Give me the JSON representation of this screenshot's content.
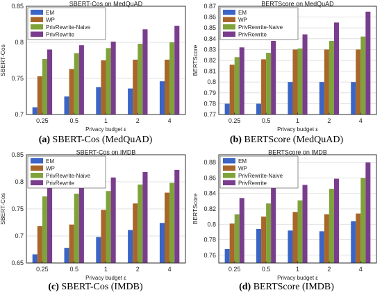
{
  "colors": {
    "EM": "#3a64c6",
    "WP": "#a8662a",
    "PrivRewrite-Naive": "#7fa33a",
    "PrivRewrite": "#7a3d8e"
  },
  "chart_data": [
    {
      "type": "bar",
      "title": "SBERT-Cos on MedQuAD",
      "caption_tag": "(a)",
      "caption_text": " SBERT-Cos (MedQuAD)",
      "xlabel": "Privacy budget ε",
      "ylabel": "SBERT-Cos",
      "ylim": [
        0.7,
        0.85
      ],
      "yticks": [
        0.7,
        0.75,
        0.8,
        0.85
      ],
      "ytick_labels": [
        "0.7",
        "0.75",
        "0.8",
        "0.85"
      ],
      "categories": [
        "0.25",
        "0.5",
        "1",
        "2",
        "4"
      ],
      "legend_position": "top-left",
      "grid": true,
      "series": [
        {
          "name": "EM",
          "values": [
            0.71,
            0.725,
            0.738,
            0.736,
            0.746
          ]
        },
        {
          "name": "WP",
          "values": [
            0.753,
            0.763,
            0.775,
            0.776,
            0.776
          ]
        },
        {
          "name": "PrivRewrite-Naive",
          "values": [
            0.777,
            0.785,
            0.792,
            0.798,
            0.8
          ]
        },
        {
          "name": "PrivRewrite",
          "values": [
            0.79,
            0.796,
            0.801,
            0.818,
            0.823
          ]
        }
      ]
    },
    {
      "type": "bar",
      "title": "BERTScore on MedQuAD",
      "caption_tag": "(b)",
      "caption_text": " BERTScore (MedQuAD)",
      "xlabel": "Privacy budget ε",
      "ylabel": "BERTScore",
      "ylim": [
        0.77,
        0.87
      ],
      "yticks": [
        0.77,
        0.78,
        0.79,
        0.8,
        0.81,
        0.82,
        0.83,
        0.84,
        0.85,
        0.86,
        0.87
      ],
      "ytick_labels": [
        "0.77",
        "0.78",
        "0.79",
        "0.8",
        "0.81",
        "0.82",
        "0.83",
        "0.84",
        "0.85",
        "0.86",
        "0.87"
      ],
      "categories": [
        "0.25",
        "0.5",
        "1",
        "2",
        "4"
      ],
      "legend_position": "top-left",
      "grid": true,
      "series": [
        {
          "name": "EM",
          "values": [
            0.78,
            0.78,
            0.8,
            0.8,
            0.8
          ]
        },
        {
          "name": "WP",
          "values": [
            0.816,
            0.821,
            0.83,
            0.83,
            0.83
          ]
        },
        {
          "name": "PrivRewrite-Naive",
          "values": [
            0.823,
            0.827,
            0.831,
            0.838,
            0.842
          ]
        },
        {
          "name": "PrivRewrite",
          "values": [
            0.832,
            0.838,
            0.844,
            0.855,
            0.865
          ]
        }
      ]
    },
    {
      "type": "bar",
      "title": "SBERT-Cos on IMDB",
      "caption_tag": "(c)",
      "caption_text": " SBERT-Cos (IMDB)",
      "xlabel": "Privacy budget ε",
      "ylabel": "SBERT-Cos",
      "ylim": [
        0.65,
        0.85
      ],
      "yticks": [
        0.65,
        0.7,
        0.75,
        0.8,
        0.85
      ],
      "ytick_labels": [
        "0.65",
        "0.7",
        "0.75",
        "0.8",
        "0.85"
      ],
      "categories": [
        "0.25",
        "0.5",
        "1",
        "2",
        "4"
      ],
      "legend_position": "top-left",
      "grid": true,
      "series": [
        {
          "name": "EM",
          "values": [
            0.666,
            0.678,
            0.698,
            0.711,
            0.724
          ]
        },
        {
          "name": "WP",
          "values": [
            0.718,
            0.721,
            0.748,
            0.76,
            0.78
          ]
        },
        {
          "name": "PrivRewrite-Naive",
          "values": [
            0.773,
            0.778,
            0.783,
            0.795,
            0.798
          ]
        },
        {
          "name": "PrivRewrite",
          "values": [
            0.793,
            0.798,
            0.808,
            0.818,
            0.822
          ]
        }
      ]
    },
    {
      "type": "bar",
      "title": "BERTScore on IMDB",
      "caption_tag": "(d)",
      "caption_text": " BERTScore (IMDB)",
      "xlabel": "Privacy budget ε",
      "ylabel": "BERTScore",
      "ylim": [
        0.75,
        0.89
      ],
      "yticks": [
        0.76,
        0.78,
        0.8,
        0.82,
        0.84,
        0.86,
        0.88
      ],
      "ytick_labels": [
        "0.76",
        "0.78",
        "0.8",
        "0.82",
        "0.84",
        "0.86",
        "0.88"
      ],
      "categories": [
        "0.25",
        "0.5",
        "1",
        "2",
        "4"
      ],
      "legend_position": "top-left",
      "grid": true,
      "series": [
        {
          "name": "EM",
          "values": [
            0.768,
            0.794,
            0.792,
            0.791,
            0.804
          ]
        },
        {
          "name": "WP",
          "values": [
            0.801,
            0.81,
            0.816,
            0.813,
            0.814
          ]
        },
        {
          "name": "PrivRewrite-Naive",
          "values": [
            0.813,
            0.827,
            0.831,
            0.846,
            0.86
          ]
        },
        {
          "name": "PrivRewrite",
          "values": [
            0.834,
            0.852,
            0.851,
            0.859,
            0.88
          ]
        }
      ]
    }
  ]
}
